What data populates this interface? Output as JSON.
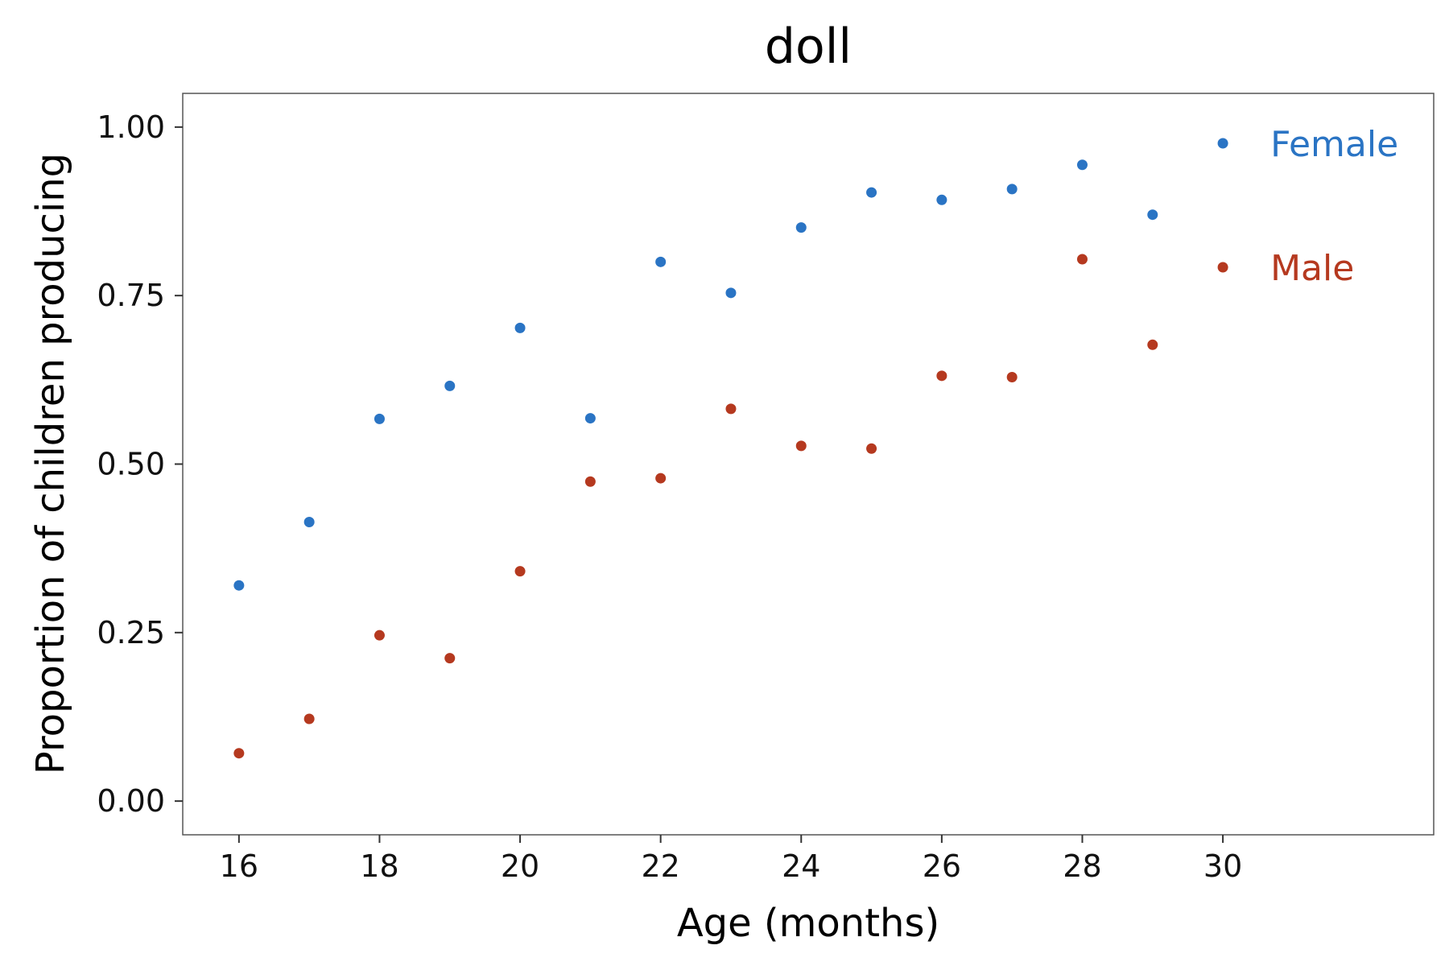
{
  "chart_data": {
    "type": "scatter",
    "title": "doll",
    "xlabel": "Age (months)",
    "ylabel": "Proportion of children producing",
    "xlim": [
      15.2,
      33
    ],
    "ylim": [
      -0.05,
      1.05
    ],
    "x_ticks": [
      16,
      18,
      20,
      22,
      24,
      26,
      28,
      30
    ],
    "x_tick_labels": [
      "16",
      "18",
      "20",
      "22",
      "24",
      "26",
      "28",
      "30"
    ],
    "y_ticks": [
      0,
      0.25,
      0.5,
      0.75,
      1.0
    ],
    "y_tick_labels": [
      "0.00",
      "0.25",
      "0.50",
      "0.75",
      "1.00"
    ],
    "grid": false,
    "legend": {
      "position": "top-right"
    },
    "series": [
      {
        "name": "Female",
        "color": "#2a74c4",
        "x": [
          16,
          17,
          18,
          19,
          20,
          21,
          22,
          23,
          24,
          25,
          26,
          27,
          28,
          29
        ],
        "y": [
          0.32,
          0.414,
          0.567,
          0.616,
          0.702,
          0.568,
          0.8,
          0.754,
          0.851,
          0.903,
          0.892,
          0.908,
          0.944,
          0.87
        ]
      },
      {
        "name": "Male",
        "color": "#b5391f",
        "x": [
          16,
          17,
          18,
          19,
          20,
          21,
          22,
          23,
          24,
          25,
          26,
          27,
          28,
          29
        ],
        "y": [
          0.071,
          0.122,
          0.246,
          0.212,
          0.341,
          0.474,
          0.479,
          0.582,
          0.527,
          0.523,
          0.631,
          0.629,
          0.804,
          0.677
        ]
      }
    ]
  }
}
